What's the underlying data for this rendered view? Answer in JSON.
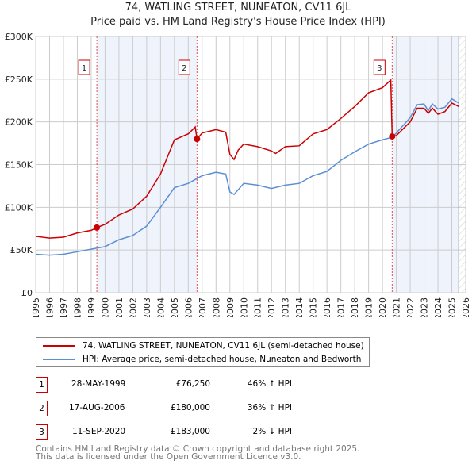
{
  "chart_data": {
    "type": "line",
    "title": "74, WATLING STREET, NUNEATON, CV11 6JL",
    "subtitle": "Price paid vs. HM Land Registry's House Price Index (HPI)",
    "xlim": [
      1995,
      2026
    ],
    "ylim": [
      0,
      300000
    ],
    "x_ticks": [
      "1995",
      "1996",
      "1997",
      "1998",
      "1999",
      "2000",
      "2001",
      "2002",
      "2003",
      "2004",
      "2005",
      "2006",
      "2007",
      "2008",
      "2009",
      "2010",
      "2011",
      "2012",
      "2013",
      "2014",
      "2015",
      "2016",
      "2017",
      "2018",
      "2019",
      "2020",
      "2021",
      "2022",
      "2023",
      "2024",
      "2025",
      "2026"
    ],
    "y_ticks": [
      {
        "v": 0,
        "label": "£0"
      },
      {
        "v": 50000,
        "label": "£50K"
      },
      {
        "v": 100000,
        "label": "£100K"
      },
      {
        "v": 150000,
        "label": "£150K"
      },
      {
        "v": 200000,
        "label": "£200K"
      },
      {
        "v": 250000,
        "label": "£250K"
      },
      {
        "v": 300000,
        "label": "£300K"
      }
    ],
    "grid": true,
    "shaded_ranges": [
      [
        1999.41,
        2006.63
      ],
      [
        2020.7,
        2025.5
      ]
    ],
    "forecast_start": 2025.5,
    "series": [
      {
        "name": "74, WATLING STREET, NUNEATON, CV11 6JL (semi-detached house)",
        "color": "#cc0000",
        "x": [
          1995,
          1996,
          1997,
          1998,
          1999,
          1999.41,
          2000,
          2001,
          2002,
          2003,
          2004,
          2005,
          2006,
          2006.5,
          2006.63,
          2007,
          2008,
          2008.7,
          2009,
          2009.3,
          2009.6,
          2010,
          2011,
          2012,
          2012.3,
          2013,
          2014,
          2015,
          2016,
          2017,
          2018,
          2019,
          2020,
          2020.6,
          2020.7,
          2021,
          2022,
          2022.5,
          2023,
          2023.3,
          2023.6,
          2024,
          2024.5,
          2025,
          2025.5
        ],
        "y": [
          66000,
          64000,
          65000,
          70000,
          73000,
          76250,
          80000,
          91000,
          98000,
          113000,
          139000,
          179000,
          186000,
          194000,
          180000,
          187000,
          191000,
          188000,
          162000,
          156000,
          167000,
          174000,
          171000,
          166000,
          163000,
          171000,
          172000,
          186000,
          191000,
          204000,
          218000,
          234000,
          240000,
          249000,
          183000,
          184000,
          200000,
          216000,
          216000,
          210000,
          216000,
          209000,
          212000,
          222000,
          218000
        ]
      },
      {
        "name": "HPI: Average price, semi-detached house, Nuneaton and Bedworth",
        "color": "#5b8fd4",
        "x": [
          1995,
          1996,
          1997,
          1998,
          1999,
          2000,
          2001,
          2002,
          2003,
          2004,
          2005,
          2006,
          2007,
          2008,
          2008.7,
          2009,
          2009.3,
          2010,
          2011,
          2012,
          2013,
          2014,
          2015,
          2016,
          2017,
          2018,
          2019,
          2020,
          2020.7,
          2021,
          2022,
          2022.5,
          2023,
          2023.3,
          2023.6,
          2024,
          2024.5,
          2025,
          2025.5
        ],
        "y": [
          45000,
          44000,
          45000,
          48000,
          51000,
          54000,
          62000,
          67000,
          78000,
          100000,
          123000,
          128000,
          137000,
          141000,
          139000,
          118000,
          115000,
          128000,
          126000,
          122000,
          126000,
          128000,
          137000,
          142000,
          155000,
          165000,
          174000,
          179000,
          182000,
          187000,
          205000,
          220000,
          221000,
          213000,
          221000,
          215000,
          217000,
          227000,
          222000
        ]
      }
    ],
    "sales": [
      {
        "id": "1",
        "x": 1999.41,
        "y": 76250,
        "date": "28-MAY-1999",
        "price": "£76,250",
        "hpi": "46% ↑ HPI"
      },
      {
        "id": "2",
        "x": 2006.63,
        "y": 180000,
        "date": "17-AUG-2006",
        "price": "£180,000",
        "hpi": "36% ↑ HPI"
      },
      {
        "id": "3",
        "x": 2020.7,
        "y": 183000,
        "date": "11-SEP-2020",
        "price": "£183,000",
        "hpi": "2% ↓ HPI"
      }
    ]
  },
  "footer": {
    "line1": "Contains HM Land Registry data © Crown copyright and database right 2025.",
    "line2": "This data is licensed under the Open Government Licence v3.0."
  }
}
